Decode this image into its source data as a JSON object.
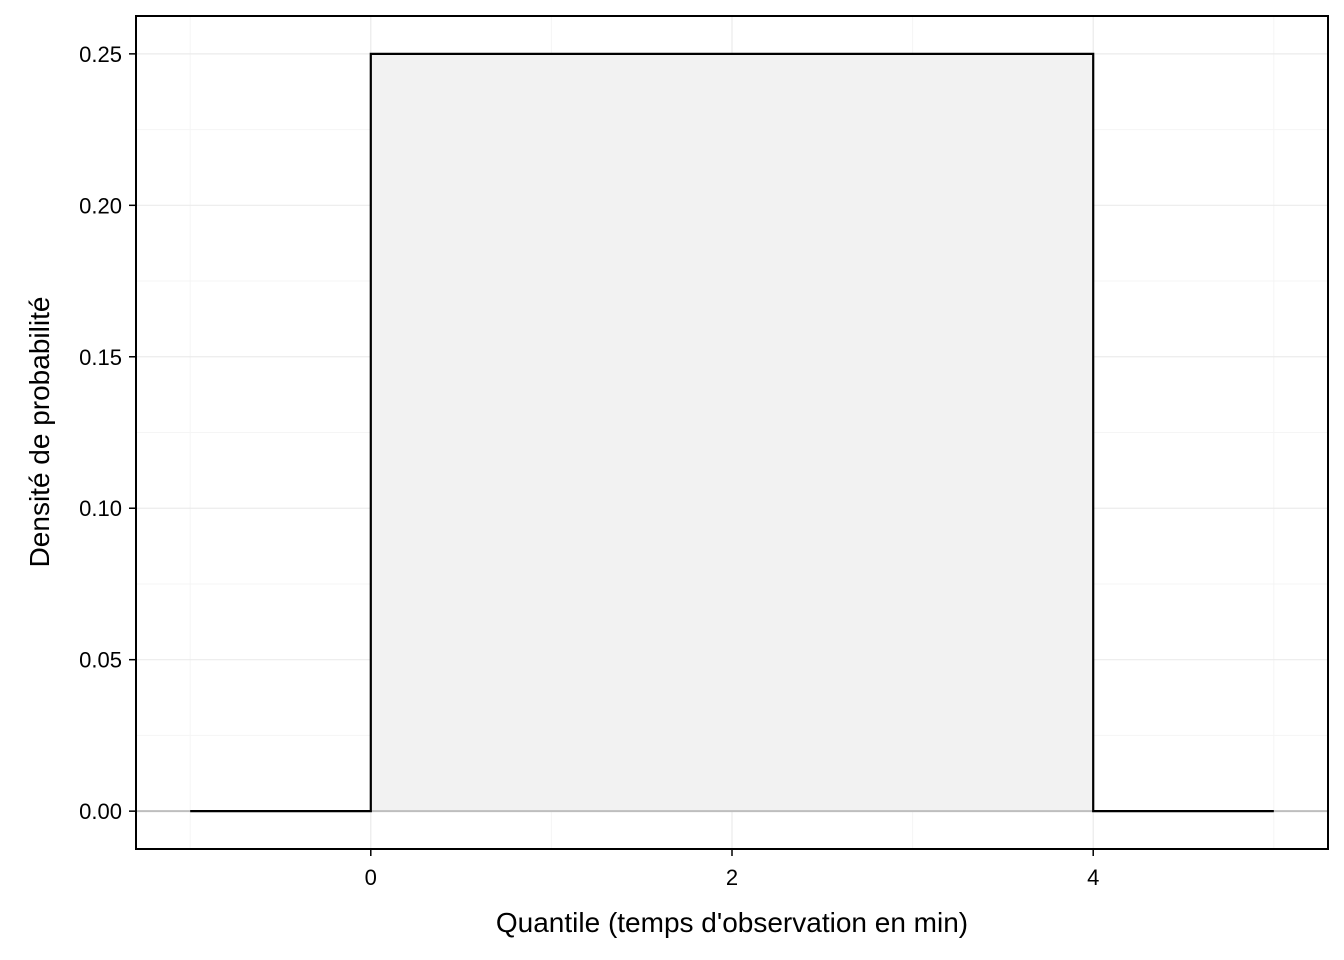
{
  "chart_data": {
    "type": "area",
    "title": "",
    "xlabel": "Quantile (temps d'observation en min)",
    "ylabel": "Densité de probabilité",
    "xlim": [
      -1.3,
      5.3
    ],
    "ylim": [
      -0.0125,
      0.2625
    ],
    "x_ticks": [
      0,
      2,
      4
    ],
    "x_tick_labels": [
      "0",
      "2",
      "4"
    ],
    "y_ticks": [
      0,
      0.05,
      0.1,
      0.15,
      0.2,
      0.25
    ],
    "y_tick_labels": [
      "0.00",
      "0.05",
      "0.10",
      "0.15",
      "0.20",
      "0.25"
    ],
    "x_minor_ticks": [
      -1,
      1,
      3,
      5
    ],
    "y_minor_ticks": [
      0.025,
      0.075,
      0.125,
      0.175,
      0.225
    ],
    "grid": true,
    "series": [
      {
        "x": [
          -1,
          0,
          0,
          4,
          4,
          5
        ],
        "y": [
          0,
          0,
          0.25,
          0.25,
          0,
          0
        ]
      }
    ],
    "shaded_region": {
      "x": [
        0,
        4
      ],
      "y": 0.25
    },
    "baseline": 0,
    "colors": {
      "line": "#000000",
      "fill": "#f2f2f2",
      "grid_major": "#ebebeb",
      "grid_minor": "#f5f5f5",
      "baseline": "#bebebe",
      "panel_border": "#000000"
    }
  }
}
